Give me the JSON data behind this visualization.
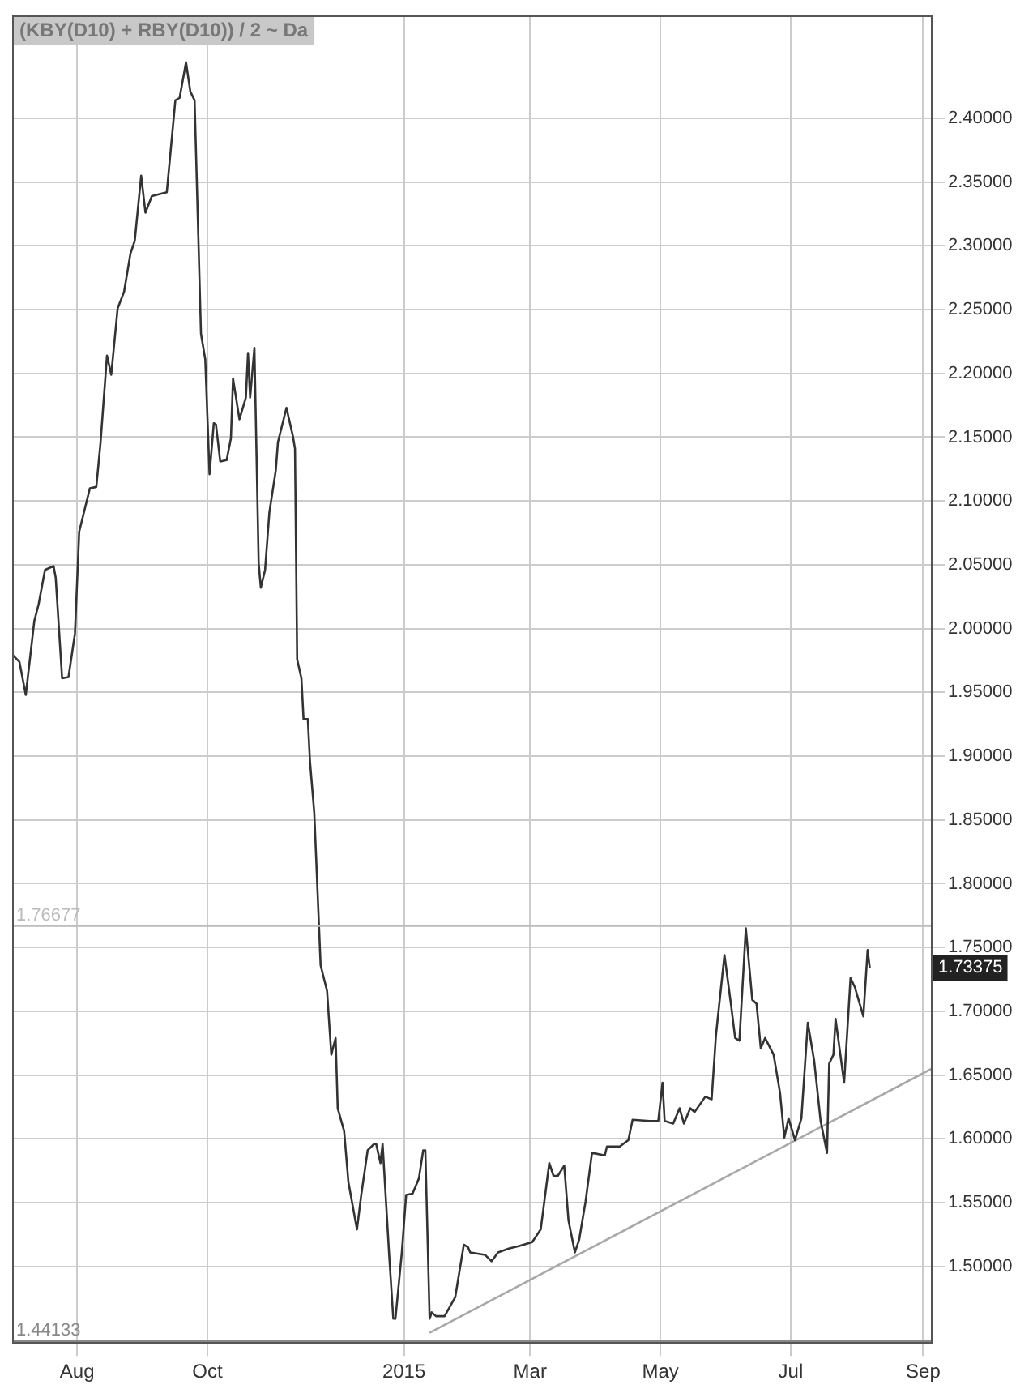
{
  "chart_data": {
    "type": "line",
    "title": "(KBY(D10) + RBY(D10)) / 2 ~ Da",
    "xlim": [
      "2014-07-02",
      "2015-09-05"
    ],
    "xticks": [
      {
        "value": "2014-08-01",
        "label": "Aug"
      },
      {
        "value": "2014-10-01",
        "label": "Oct"
      },
      {
        "value": "2015-01-01",
        "label": "2015"
      },
      {
        "value": "2015-03-01",
        "label": "Mar"
      },
      {
        "value": "2015-05-01",
        "label": "May"
      },
      {
        "value": "2015-07-01",
        "label": "Jul"
      },
      {
        "value": "2015-09-01",
        "label": "Sep"
      }
    ],
    "ylim": [
      1.44,
      2.48
    ],
    "yticks": [
      {
        "value": 1.5,
        "label": "1.50000"
      },
      {
        "value": 1.55,
        "label": "1.55000"
      },
      {
        "value": 1.6,
        "label": "1.60000"
      },
      {
        "value": 1.65,
        "label": "1.65000"
      },
      {
        "value": 1.7,
        "label": "1.70000"
      },
      {
        "value": 1.75,
        "label": "1.75000"
      },
      {
        "value": 1.8,
        "label": "1.80000"
      },
      {
        "value": 1.85,
        "label": "1.85000"
      },
      {
        "value": 1.9,
        "label": "1.90000"
      },
      {
        "value": 1.95,
        "label": "1.95000"
      },
      {
        "value": 2.0,
        "label": "2.00000"
      },
      {
        "value": 2.05,
        "label": "2.05000"
      },
      {
        "value": 2.1,
        "label": "2.10000"
      },
      {
        "value": 2.15,
        "label": "2.15000"
      },
      {
        "value": 2.2,
        "label": "2.20000"
      },
      {
        "value": 2.25,
        "label": "2.25000"
      },
      {
        "value": 2.3,
        "label": "2.30000"
      },
      {
        "value": 2.35,
        "label": "2.35000"
      },
      {
        "value": 2.4,
        "label": "2.40000"
      }
    ],
    "grid": true,
    "legend": false,
    "marker": "none",
    "line_style": "solid",
    "series": [
      {
        "color": "#333333",
        "x": [
          "2014-07-02",
          "2014-07-05",
          "2014-07-08",
          "2014-07-12",
          "2014-07-14",
          "2014-07-17",
          "2014-07-21",
          "2014-07-22",
          "2014-07-25",
          "2014-07-28",
          "2014-07-31",
          "2014-08-02",
          "2014-08-07",
          "2014-08-10",
          "2014-08-12",
          "2014-08-15",
          "2014-08-17",
          "2014-08-20",
          "2014-08-23",
          "2014-08-26",
          "2014-08-28",
          "2014-08-31",
          "2014-09-02",
          "2014-09-05",
          "2014-09-12",
          "2014-09-16",
          "2014-09-18",
          "2014-09-21",
          "2014-09-23",
          "2014-09-25",
          "2014-09-28",
          "2014-09-30",
          "2014-10-02",
          "2014-10-04",
          "2014-10-05",
          "2014-10-07",
          "2014-10-10",
          "2014-10-12",
          "2014-10-13",
          "2014-10-16",
          "2014-10-19",
          "2014-10-20",
          "2014-10-21",
          "2014-10-23",
          "2014-10-25",
          "2014-10-26",
          "2014-10-28",
          "2014-10-30",
          "2014-11-02",
          "2014-11-03",
          "2014-11-07",
          "2014-11-10",
          "2014-11-11",
          "2014-11-12",
          "2014-11-14",
          "2014-11-15",
          "2014-11-17",
          "2014-11-18",
          "2014-11-20",
          "2014-11-23",
          "2014-11-26",
          "2014-11-28",
          "2014-11-30",
          "2014-12-01",
          "2014-12-04",
          "2014-12-06",
          "2014-12-10",
          "2014-12-12",
          "2014-12-15",
          "2014-12-18",
          "2014-12-19",
          "2014-12-21",
          "2014-12-22",
          "2014-12-25",
          "2014-12-27",
          "2014-12-28",
          "2014-12-31",
          "2015-01-02",
          "2015-01-05",
          "2015-01-08",
          "2015-01-10",
          "2015-01-11",
          "2015-01-13",
          "2015-01-14",
          "2015-01-16",
          "2015-01-20",
          "2015-01-25",
          "2015-01-29",
          "2015-01-31",
          "2015-02-01",
          "2015-02-08",
          "2015-02-11",
          "2015-02-14",
          "2015-02-19",
          "2015-02-24",
          "2015-03-02",
          "2015-03-06",
          "2015-03-10",
          "2015-03-12",
          "2015-03-14",
          "2015-03-17",
          "2015-03-19",
          "2015-03-22",
          "2015-03-24",
          "2015-03-27",
          "2015-03-30",
          "2015-04-05",
          "2015-04-06",
          "2015-04-12",
          "2015-04-16",
          "2015-04-18",
          "2015-04-26",
          "2015-04-30",
          "2015-05-02",
          "2015-05-03",
          "2015-05-07",
          "2015-05-10",
          "2015-05-12",
          "2015-05-15",
          "2015-05-17",
          "2015-05-22",
          "2015-05-25",
          "2015-05-27",
          "2015-05-31",
          "2015-06-03",
          "2015-06-05",
          "2015-06-07",
          "2015-06-10",
          "2015-06-13",
          "2015-06-15",
          "2015-06-17",
          "2015-06-19",
          "2015-06-23",
          "2015-06-26",
          "2015-06-28",
          "2015-06-30",
          "2015-07-03",
          "2015-07-06",
          "2015-07-09",
          "2015-07-12",
          "2015-07-15",
          "2015-07-18",
          "2015-07-19",
          "2015-07-21",
          "2015-07-22",
          "2015-07-26",
          "2015-07-29",
          "2015-07-31",
          "2015-08-04",
          "2015-08-06",
          "2015-08-07"
        ],
        "values": [
          1.979,
          1.974,
          1.948,
          2.006,
          2.019,
          2.046,
          2.049,
          2.04,
          1.961,
          1.962,
          1.996,
          2.076,
          2.11,
          2.111,
          2.146,
          2.214,
          2.199,
          2.251,
          2.264,
          2.294,
          2.304,
          2.355,
          2.326,
          2.339,
          2.342,
          2.414,
          2.416,
          2.444,
          2.421,
          2.414,
          2.231,
          2.211,
          2.121,
          2.161,
          2.16,
          2.131,
          2.132,
          2.149,
          2.196,
          2.164,
          2.181,
          2.216,
          2.181,
          2.22,
          2.051,
          2.032,
          2.046,
          2.091,
          2.124,
          2.146,
          2.173,
          2.151,
          2.141,
          1.976,
          1.961,
          1.929,
          1.929,
          1.896,
          1.856,
          1.736,
          1.716,
          1.666,
          1.679,
          1.624,
          1.606,
          1.566,
          1.529,
          1.556,
          1.591,
          1.596,
          1.596,
          1.581,
          1.596,
          1.511,
          1.459,
          1.459,
          1.511,
          1.556,
          1.557,
          1.569,
          1.591,
          1.591,
          1.459,
          1.464,
          1.461,
          1.461,
          1.476,
          1.517,
          1.515,
          1.511,
          1.509,
          1.504,
          1.511,
          1.514,
          1.516,
          1.519,
          1.529,
          1.581,
          1.571,
          1.571,
          1.579,
          1.536,
          1.511,
          1.521,
          1.551,
          1.589,
          1.587,
          1.594,
          1.594,
          1.599,
          1.615,
          1.614,
          1.614,
          1.644,
          1.614,
          1.612,
          1.624,
          1.612,
          1.624,
          1.621,
          1.633,
          1.631,
          1.681,
          1.744,
          1.706,
          1.679,
          1.677,
          1.765,
          1.709,
          1.706,
          1.671,
          1.679,
          1.666,
          1.636,
          1.601,
          1.616,
          1.599,
          1.616,
          1.691,
          1.661,
          1.614,
          1.589,
          1.659,
          1.666,
          1.694,
          1.644,
          1.726,
          1.719,
          1.696,
          1.748,
          1.734
        ]
      },
      {
        "color": "#a8a8a8",
        "x": [
          "2015-01-13",
          "2015-09-05"
        ],
        "values": [
          1.448,
          1.655
        ]
      }
    ],
    "ref_lines": [
      {
        "axis": "y",
        "value": 1.76677,
        "label": "1.76677",
        "color": "#bbbbbb"
      },
      {
        "axis": "y",
        "value": 1.44133,
        "label": "1.44133",
        "color": "#888888"
      }
    ],
    "annotations": [
      "1.73375"
    ]
  }
}
